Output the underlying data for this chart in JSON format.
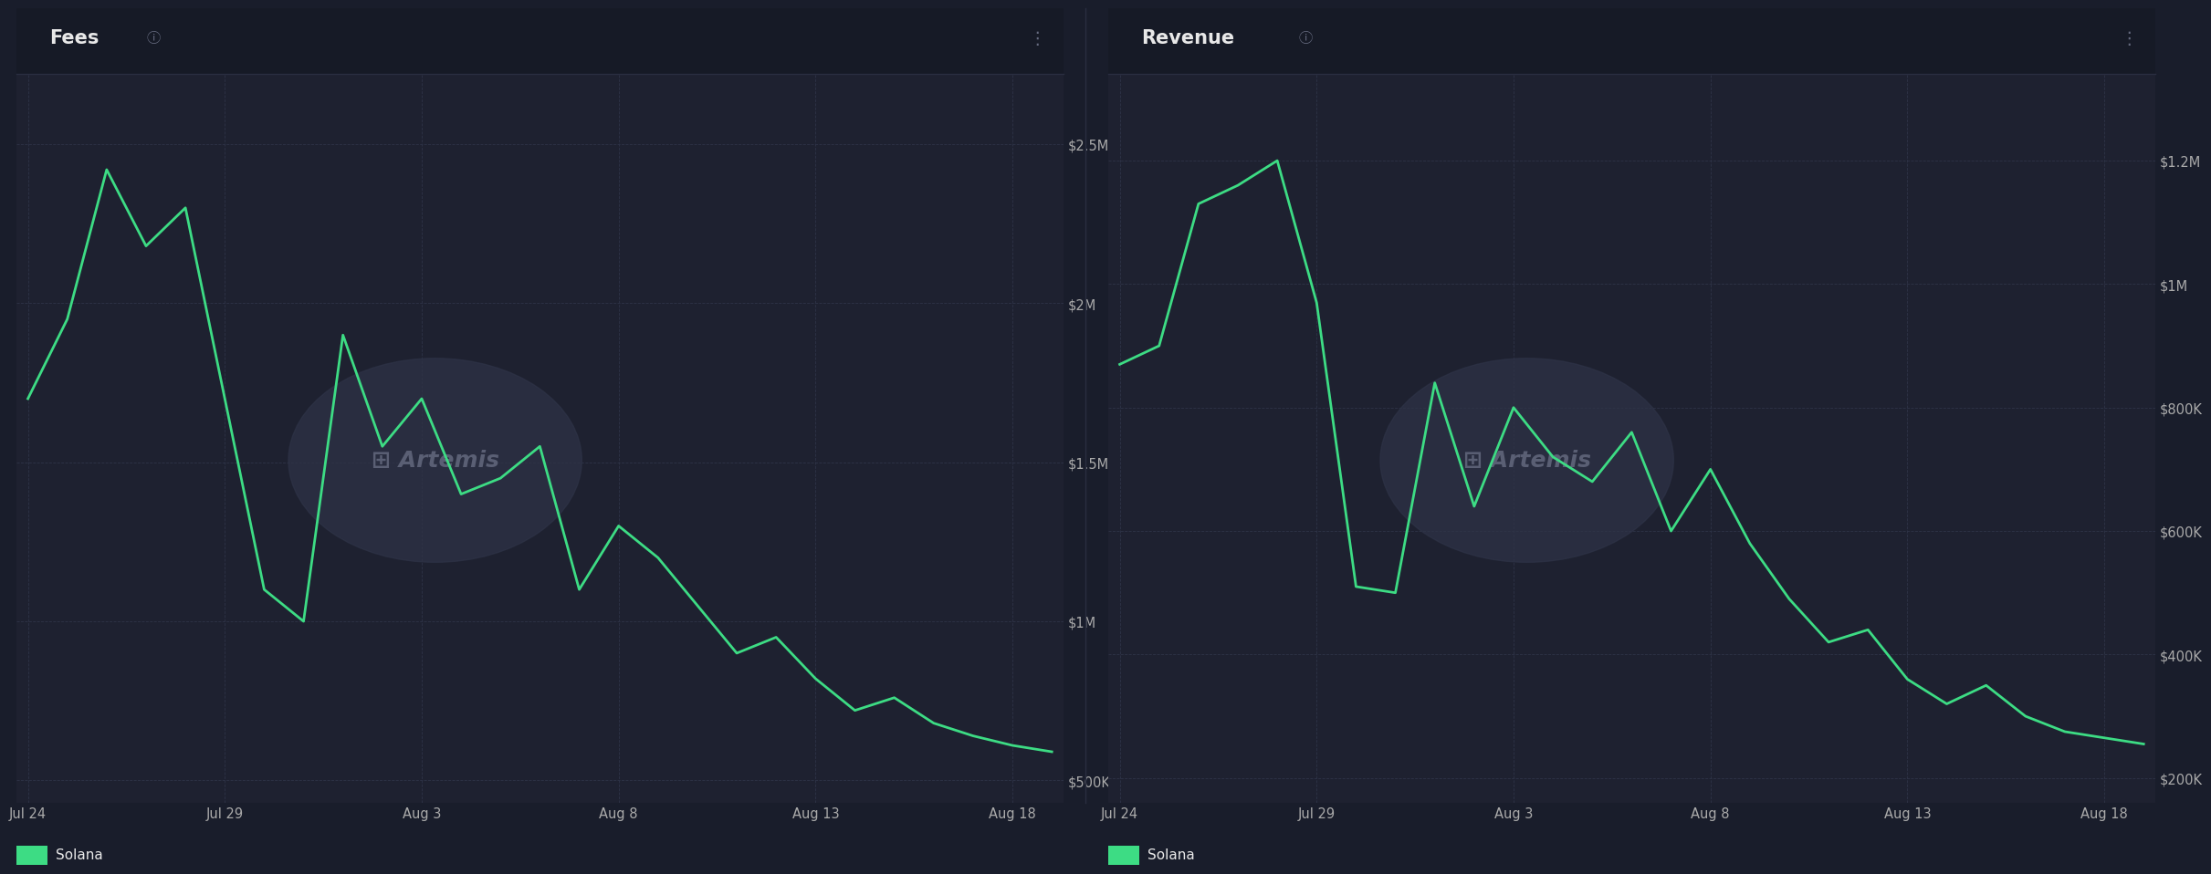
{
  "fees_title": "Fees",
  "revenue_title": "Revenue",
  "legend_label": "Solana",
  "line_color": "#3ddc84",
  "line_width": 2.0,
  "bg_color": "#191d2b",
  "panel_bg": "#1e2130",
  "grid_color": "#2e3347",
  "text_color": "#e8e8e8",
  "axis_label_color": "#aaaaaa",
  "title_fontsize": 15,
  "tick_fontsize": 10.5,
  "legend_fontsize": 11,
  "fees_x": [
    0,
    1,
    2,
    3,
    4,
    5,
    6,
    7,
    8,
    9,
    10,
    11,
    12,
    13,
    14,
    15,
    16,
    17,
    18,
    19,
    20,
    21,
    22,
    23,
    24,
    25,
    26
  ],
  "fees_y": [
    1700000,
    1950000,
    2420000,
    2180000,
    2300000,
    1700000,
    1100000,
    1000000,
    1900000,
    1550000,
    1700000,
    1400000,
    1450000,
    1550000,
    1100000,
    1300000,
    1200000,
    1050000,
    900000,
    950000,
    820000,
    720000,
    760000,
    680000,
    640000,
    610000,
    590000
  ],
  "revenue_y": [
    870000,
    900000,
    1130000,
    1160000,
    1200000,
    970000,
    510000,
    500000,
    840000,
    640000,
    800000,
    720000,
    680000,
    760000,
    600000,
    700000,
    580000,
    490000,
    420000,
    440000,
    360000,
    320000,
    350000,
    300000,
    275000,
    265000,
    255000
  ],
  "x_tick_positions": [
    0,
    5,
    10,
    15,
    20,
    25
  ],
  "x_tick_labels": [
    "Jul 24",
    "Jul 29",
    "Aug 3",
    "Aug 8",
    "Aug 13",
    "Aug 18"
  ],
  "fees_yticks": [
    500000,
    1000000,
    1500000,
    2000000,
    2500000
  ],
  "fees_ytick_labels": [
    "$500K",
    "$1M",
    "$1.5M",
    "$2M",
    "$2.5M"
  ],
  "fees_ylim": [
    430000,
    2720000
  ],
  "revenue_yticks": [
    200000,
    400000,
    600000,
    800000,
    1000000,
    1200000
  ],
  "revenue_ytick_labels": [
    "$200K",
    "$400K",
    "$600K",
    "$800K",
    "$1M",
    "$1.2M"
  ],
  "revenue_ylim": [
    160000,
    1340000
  ],
  "separator_color": "#2a2e40"
}
